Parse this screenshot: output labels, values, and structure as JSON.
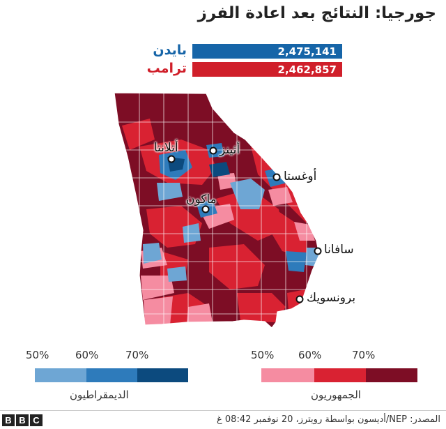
{
  "title": "جورجيا: النتائج بعد اعادة الفرز",
  "results": [
    {
      "name": "بايدن",
      "votes": "2,475,141",
      "color": "#1665a8"
    },
    {
      "name": "ترامب",
      "votes": "2,462,857",
      "color": "#d01f2a"
    }
  ],
  "cities": [
    {
      "name": "أتلانتا"
    },
    {
      "name": "أثينز"
    },
    {
      "name": "أوغستا"
    },
    {
      "name": "ماكون"
    },
    {
      "name": "سافانا"
    },
    {
      "name": "برونسويك"
    }
  ],
  "legend": {
    "democrat": {
      "label": "الديمقراطيون",
      "ticks": [
        "50%",
        "60%",
        "70%"
      ],
      "colors": [
        "#6ea6d4",
        "#2e7bbb",
        "#0c4a7e"
      ]
    },
    "republican": {
      "label": "الجمهوريون",
      "ticks": [
        "50%",
        "60%",
        "70%"
      ],
      "colors": [
        "#f58ca1",
        "#d92232",
        "#7d0d25"
      ]
    }
  },
  "source": "المصدر: NEP/أديسون بواسطة رويترز، 20 نوفمبر 08:42 غ",
  "logo": [
    "B",
    "B",
    "C"
  ]
}
